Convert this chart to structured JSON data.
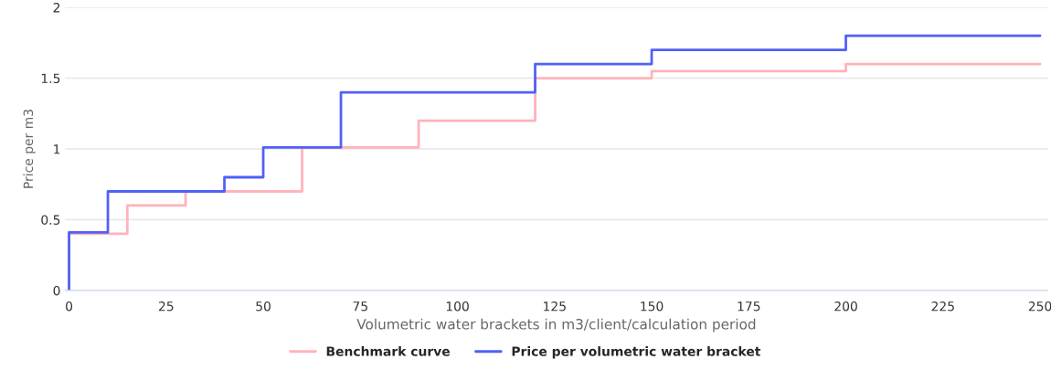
{
  "chart_data": {
    "type": "step",
    "xlabel": "Volumetric water brackets in m3/client/calculation period",
    "ylabel": "Price per m3",
    "series": [
      {
        "name": "Benchmark curve",
        "color": "#ffb3ba",
        "x": [
          0,
          0,
          15,
          30,
          60,
          90,
          120,
          150,
          200,
          250
        ],
        "values": [
          0,
          0.4,
          0.6,
          0.7,
          1.01,
          1.2,
          1.5,
          1.55,
          1.6,
          1.6
        ]
      },
      {
        "name": "Price per volumetric water bracket",
        "color": "#5060f8",
        "x": [
          0,
          0,
          10,
          40,
          50,
          70,
          120,
          150,
          200,
          250
        ],
        "values": [
          0,
          0.41,
          0.7,
          0.8,
          1.01,
          1.4,
          1.6,
          1.7,
          1.8,
          1.8
        ]
      }
    ],
    "xlim": [
      -1,
      252
    ],
    "xticks": [
      0,
      25,
      50,
      75,
      100,
      125,
      150,
      175,
      200,
      225,
      250
    ],
    "ylim": [
      0,
      2
    ],
    "yticks": [
      0,
      0.5,
      1,
      1.5,
      2
    ],
    "grid": "y",
    "legend": "bottom",
    "marker": "none",
    "line_style": "solid"
  }
}
